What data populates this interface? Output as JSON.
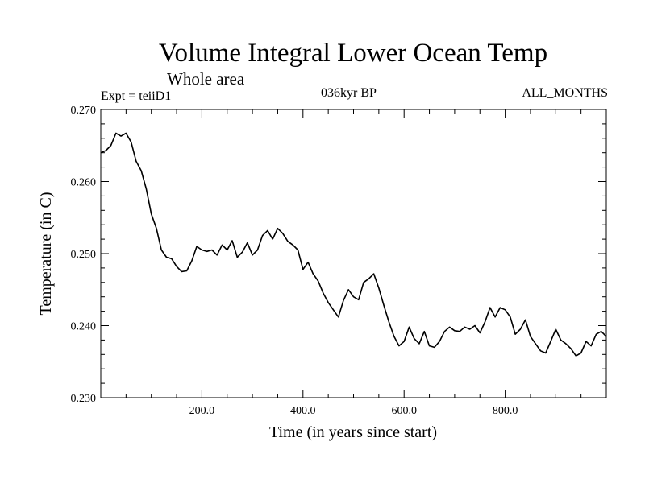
{
  "header": {
    "title": "Volume Integral Lower Ocean Temp",
    "subtitle": "Whole area",
    "experiment": "Expt = teiiD1",
    "period": "036kyr BP",
    "months": "ALL_MONTHS"
  },
  "chart_data": {
    "type": "line",
    "title": "Volume Integral Lower Ocean Temp",
    "subtitle": "Whole area",
    "xlabel": "Time (in years since start)",
    "ylabel": "Temperature (in C)",
    "xlim": [
      0,
      1000
    ],
    "ylim": [
      0.23,
      0.27
    ],
    "x_ticks": [
      200,
      400,
      600,
      800
    ],
    "x_tick_labels": [
      "200.0",
      "400.0",
      "600.0",
      "800.0"
    ],
    "y_ticks": [
      0.23,
      0.24,
      0.25,
      0.26,
      0.27
    ],
    "y_tick_labels": [
      "0.230",
      "0.240",
      "0.250",
      "0.260",
      "0.270"
    ],
    "grid": false,
    "line_color": "#000000",
    "series": [
      {
        "x": [
          0,
          10,
          20,
          30,
          40,
          50,
          60,
          70,
          80,
          90,
          100,
          110,
          120,
          130,
          140,
          150,
          160,
          170,
          180,
          190,
          200,
          210,
          220,
          230,
          240,
          250,
          260,
          270,
          280,
          290,
          300,
          310,
          320,
          330,
          340,
          350,
          360,
          370,
          380,
          390,
          400,
          410,
          420,
          430,
          440,
          450,
          460,
          470,
          480,
          490,
          500,
          510,
          520,
          530,
          540,
          550,
          560,
          570,
          580,
          590,
          600,
          610,
          620,
          630,
          640,
          650,
          660,
          670,
          680,
          690,
          700,
          710,
          720,
          730,
          740,
          750,
          760,
          770,
          780,
          790,
          800,
          810,
          820,
          830,
          840,
          850,
          860,
          870,
          880,
          890,
          900,
          910,
          920,
          930,
          940,
          950,
          960,
          970,
          980,
          990,
          1000
        ],
        "values": [
          0.264,
          0.2643,
          0.265,
          0.2667,
          0.2663,
          0.2667,
          0.2655,
          0.2628,
          0.2615,
          0.259,
          0.2555,
          0.2535,
          0.2505,
          0.2495,
          0.2493,
          0.2482,
          0.2475,
          0.2476,
          0.249,
          0.251,
          0.2505,
          0.2503,
          0.2505,
          0.2498,
          0.2512,
          0.2505,
          0.2518,
          0.2495,
          0.2502,
          0.2515,
          0.2498,
          0.2505,
          0.2525,
          0.2532,
          0.252,
          0.2535,
          0.2528,
          0.2517,
          0.2512,
          0.2505,
          0.2478,
          0.2488,
          0.2472,
          0.2462,
          0.2445,
          0.2432,
          0.2422,
          0.2412,
          0.2435,
          0.245,
          0.244,
          0.2436,
          0.246,
          0.2465,
          0.2472,
          0.2452,
          0.2428,
          0.2405,
          0.2385,
          0.2372,
          0.2378,
          0.2398,
          0.2382,
          0.2375,
          0.2392,
          0.2372,
          0.237,
          0.2378,
          0.2392,
          0.2398,
          0.2393,
          0.2392,
          0.2398,
          0.2395,
          0.24,
          0.239,
          0.2405,
          0.2425,
          0.2412,
          0.2425,
          0.2422,
          0.2412,
          0.2388,
          0.2395,
          0.2408,
          0.2385,
          0.2375,
          0.2365,
          0.2362,
          0.2378,
          0.2395,
          0.238,
          0.2375,
          0.2368,
          0.2358,
          0.2362,
          0.2378,
          0.2372,
          0.2388,
          0.2392,
          0.2385
        ]
      }
    ]
  }
}
